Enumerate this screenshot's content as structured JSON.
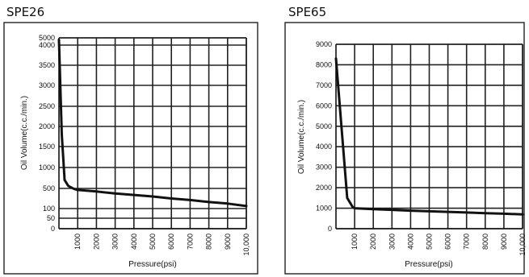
{
  "chart_data": [
    {
      "title": "SPE26",
      "type": "line",
      "xlabel": "Pressure(psi)",
      "ylabel": "Oil Volume(c.c./min.)",
      "x_ticks": [
        "1000",
        "2000",
        "3000",
        "4000",
        "5000",
        "6000",
        "7000",
        "8000",
        "9000",
        "10,000"
      ],
      "y_ticks": [
        {
          "label": "0",
          "value": 0
        },
        {
          "label": "50",
          "value": 50
        },
        {
          "label": "100",
          "value": 100
        },
        {
          "label": "500",
          "value": 500
        },
        {
          "label": "1000",
          "value": 1000
        },
        {
          "label": "1500",
          "value": 1500
        },
        {
          "label": "2000",
          "value": 2000
        },
        {
          "label": "2500",
          "value": 2500
        },
        {
          "label": "3000",
          "value": 3000
        },
        {
          "label": "3500",
          "value": 3500
        },
        {
          "label": "4000",
          "value": 4000
        },
        {
          "label": "4500",
          "value": 4500
        },
        {
          "label": "5000",
          "value": 5000
        }
      ],
      "xlim": [
        0,
        10000
      ],
      "ylim": [
        0,
        5000
      ],
      "grid": true,
      "series": [
        {
          "x": [
            0,
            150,
            300,
            500,
            800,
            1000,
            2000,
            3000,
            4000,
            5000,
            6000,
            7000,
            8000,
            9000,
            10000
          ],
          "y": [
            4700,
            1800,
            700,
            560,
            490,
            470,
            440,
            400,
            370,
            340,
            300,
            270,
            230,
            200,
            150
          ]
        }
      ]
    },
    {
      "title": "SPE65",
      "type": "line",
      "xlabel": "Pressure(psi)",
      "ylabel": "Oil Volume(c.c./min.)",
      "x_ticks": [
        "1000",
        "2000",
        "3000",
        "4000",
        "5000",
        "6000",
        "7000",
        "8000",
        "9000",
        "10,000"
      ],
      "y_ticks": [
        {
          "label": "0",
          "value": 0
        },
        {
          "label": "1000",
          "value": 1000
        },
        {
          "label": "2000",
          "value": 2000
        },
        {
          "label": "3000",
          "value": 3000
        },
        {
          "label": "4000",
          "value": 4000
        },
        {
          "label": "5000",
          "value": 5000
        },
        {
          "label": "6000",
          "value": 6000
        },
        {
          "label": "7000",
          "value": 7000
        },
        {
          "label": "8000",
          "value": 8000
        },
        {
          "label": "9000",
          "value": 9000
        }
      ],
      "xlim": [
        0,
        10000
      ],
      "ylim": [
        0,
        9000
      ],
      "grid": true,
      "series": [
        {
          "x": [
            0,
            600,
            900,
            1000,
            2000,
            3000,
            4000,
            5000,
            6000,
            7000,
            8000,
            9000,
            10000
          ],
          "y": [
            8300,
            1500,
            1050,
            1000,
            950,
            920,
            880,
            850,
            820,
            790,
            760,
            730,
            700
          ]
        }
      ]
    }
  ]
}
